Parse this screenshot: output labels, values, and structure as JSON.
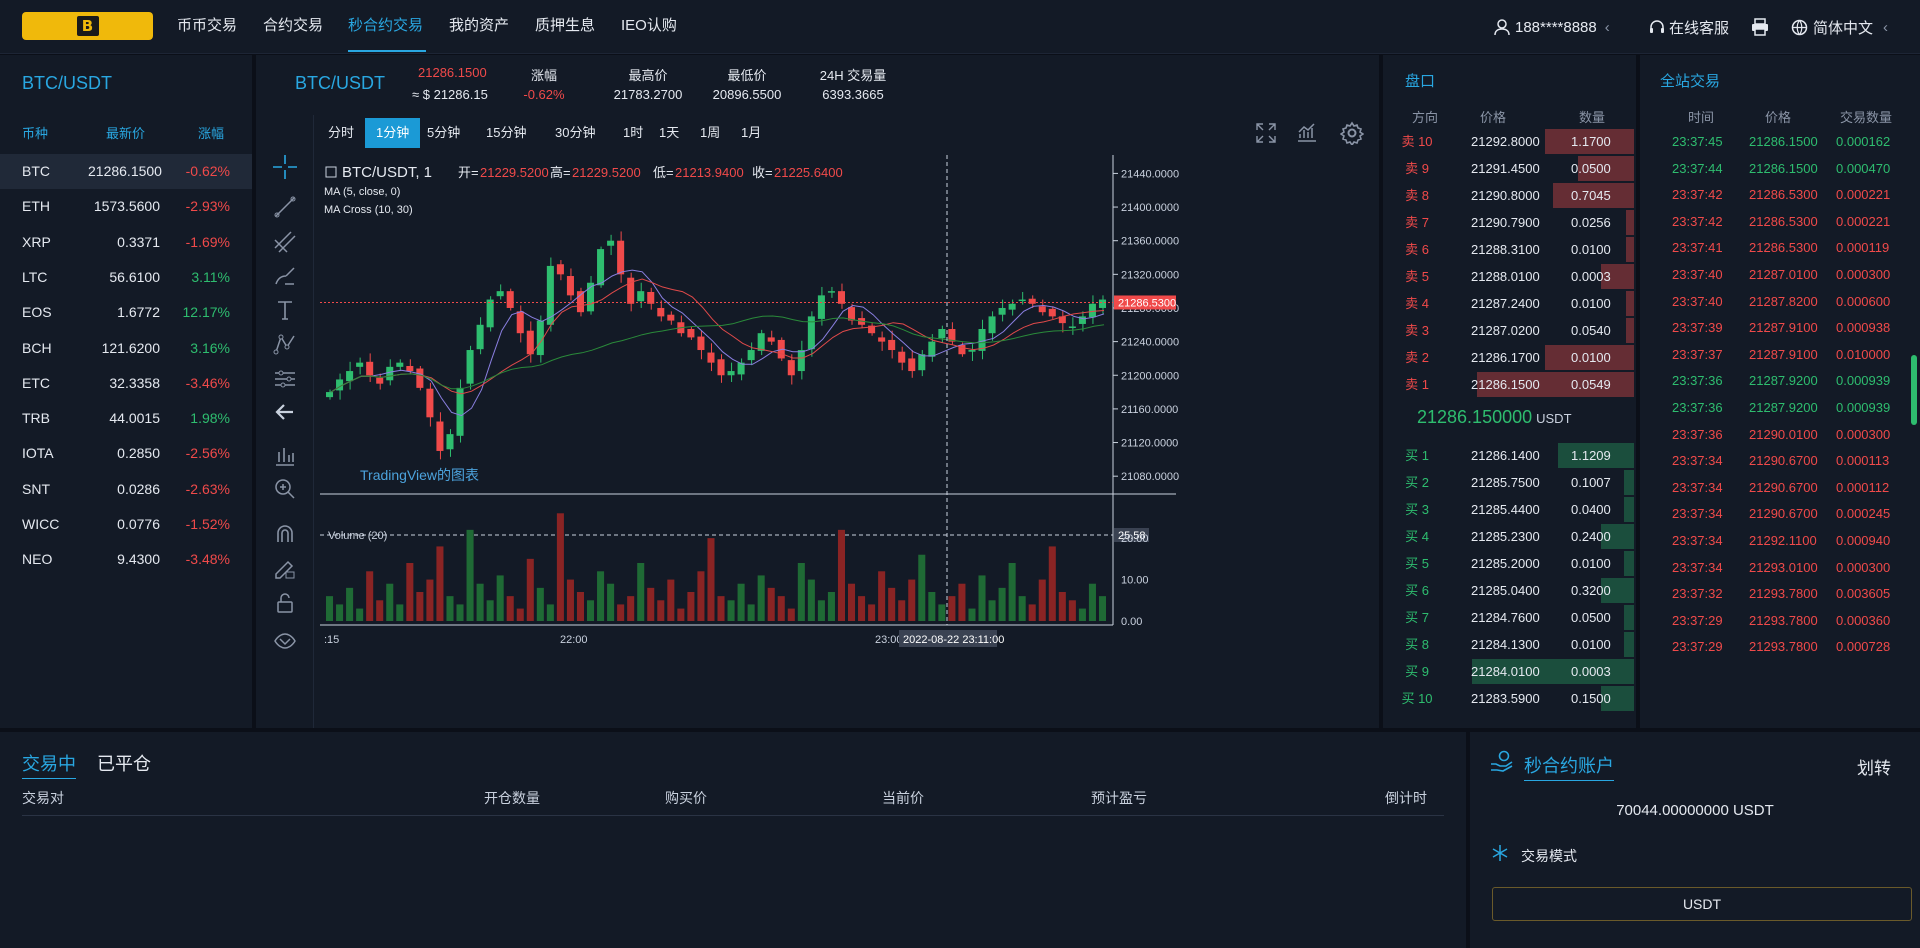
{
  "nav": {
    "logo_letter": "B",
    "items": [
      "币币交易",
      "合约交易",
      "秒合约交易",
      "我的资产",
      "质押生息",
      "IEO认购"
    ],
    "active_index": 2,
    "user": "188****8888",
    "user_chevron": "‹",
    "service": "在线客服",
    "language": "简体中文",
    "lang_chevron": "‹"
  },
  "left": {
    "title": "BTC/USDT",
    "headers": {
      "coin": "币种",
      "price": "最新价",
      "change": "涨幅"
    },
    "rows": [
      {
        "coin": "BTC",
        "price": "21286.1500",
        "change": "-0.62%",
        "dir": "down",
        "selected": true
      },
      {
        "coin": "ETH",
        "price": "1573.5600",
        "change": "-2.93%",
        "dir": "down"
      },
      {
        "coin": "XRP",
        "price": "0.3371",
        "change": "-1.69%",
        "dir": "down"
      },
      {
        "coin": "LTC",
        "price": "56.6100",
        "change": "3.11%",
        "dir": "up"
      },
      {
        "coin": "EOS",
        "price": "1.6772",
        "change": "12.17%",
        "dir": "up"
      },
      {
        "coin": "BCH",
        "price": "121.6200",
        "change": "3.16%",
        "dir": "up"
      },
      {
        "coin": "ETC",
        "price": "32.3358",
        "change": "-3.46%",
        "dir": "down"
      },
      {
        "coin": "TRB",
        "price": "44.0015",
        "change": "1.98%",
        "dir": "up"
      },
      {
        "coin": "IOTA",
        "price": "0.2850",
        "change": "-2.56%",
        "dir": "down"
      },
      {
        "coin": "SNT",
        "price": "0.0286",
        "change": "-2.63%",
        "dir": "down"
      },
      {
        "coin": "WICC",
        "price": "0.0776",
        "change": "-1.52%",
        "dir": "down"
      },
      {
        "coin": "NEO",
        "price": "9.4300",
        "change": "-3.48%",
        "dir": "down"
      }
    ]
  },
  "ticker": {
    "pair": "BTC/USDT",
    "price": "21286.1500",
    "price_usd": "≈ $ 21286.15",
    "stats": [
      {
        "label": "涨幅",
        "value": "-0.62%",
        "color": "#f04a4a"
      },
      {
        "label": "最高价",
        "value": "21783.2700",
        "color": "#e5e9f0"
      },
      {
        "label": "最低价",
        "value": "20896.5500",
        "color": "#e5e9f0"
      },
      {
        "label": "24H 交易量",
        "value": "6393.3665",
        "color": "#e5e9f0"
      }
    ],
    "timeframes": [
      "分时",
      "1分钟",
      "5分钟",
      "15分钟",
      "30分钟",
      "1时",
      "1天",
      "1周",
      "1月"
    ],
    "active_tf": 1
  },
  "chart_data": {
    "type": "candlestick",
    "symbol": "BTC/USDT, 1",
    "ohlc_labels": {
      "open": "开=",
      "high": "高=",
      "low": "低=",
      "close": "收="
    },
    "ohlc": {
      "open": "21229.5200",
      "high": "21229.5200",
      "low": "21213.9400",
      "close": "21225.6400"
    },
    "indicators": [
      "MA (5, close, 0)",
      "MA Cross (10, 30)"
    ],
    "watermark": "TradingView的图表",
    "y_ticks": [
      "21440.0000",
      "21400.0000",
      "21360.0000",
      "21320.0000",
      "21280.0000",
      "21240.0000",
      "21200.0000",
      "21160.0000",
      "21120.0000",
      "21080.0000"
    ],
    "y_range": [
      21060,
      21450
    ],
    "last_price_label": "21286.5300",
    "last_price": 21286.53,
    "volume_label": "Volume (20)",
    "volume_ticks": [
      "20.00",
      "10.00",
      "0.00"
    ],
    "volume_range": [
      0,
      28
    ],
    "volume_cursor_label": "25.58",
    "x_ticks": [
      ":15",
      "22:00",
      "23:00"
    ],
    "crosshair_time": "2022-08-22 23:11:00",
    "close_path": [
      21180,
      21195,
      21205,
      21215,
      21200,
      21190,
      21210,
      21215,
      21205,
      21185,
      21150,
      21110,
      21130,
      21185,
      21230,
      21260,
      21290,
      21300,
      21280,
      21250,
      21225,
      21265,
      21330,
      21320,
      21295,
      21275,
      21310,
      21350,
      21360,
      21320,
      21285,
      21300,
      21285,
      21270,
      21265,
      21250,
      21245,
      21230,
      21215,
      21200,
      21205,
      21215,
      21230,
      21250,
      21240,
      21220,
      21200,
      21230,
      21270,
      21295,
      21300,
      21285,
      21265,
      21260,
      21250,
      21240,
      21230,
      21215,
      21205,
      21225,
      21240,
      21255,
      21240,
      21225,
      21230,
      21255,
      21270,
      21280,
      21285,
      21290,
      21285,
      21275,
      21270,
      21262,
      21258,
      21270,
      21285,
      21290
    ],
    "volume_values": [
      6,
      4,
      8,
      3,
      12,
      5,
      9,
      4,
      14,
      7,
      10,
      18,
      6,
      4,
      22,
      9,
      5,
      11,
      6,
      3,
      15,
      8,
      4,
      26,
      10,
      7,
      5,
      12,
      9,
      4,
      6,
      14,
      8,
      5,
      10,
      3,
      7,
      12,
      20,
      6,
      5,
      9,
      4,
      11,
      8,
      6,
      3,
      14,
      10,
      5,
      7,
      22,
      9,
      6,
      4,
      12,
      8,
      5,
      10,
      16,
      7,
      4,
      6,
      9,
      3,
      11,
      5,
      8,
      14,
      6,
      4,
      10,
      18,
      7,
      5,
      3,
      9,
      6
    ]
  },
  "orderbook": {
    "title": "盘口",
    "headers": {
      "dir": "方向",
      "price": "价格",
      "qty": "数量"
    },
    "asks": [
      {
        "side": "卖 10",
        "price": "21292.8000",
        "qty": "1.1700",
        "depth": 0.35
      },
      {
        "side": "卖 9",
        "price": "21291.4500",
        "qty": "0.0500",
        "depth": 0.22
      },
      {
        "side": "卖 8",
        "price": "21290.8000",
        "qty": "0.7045",
        "depth": 0.32
      },
      {
        "side": "卖 7",
        "price": "21290.7900",
        "qty": "0.0256",
        "depth": 0.03
      },
      {
        "side": "卖 6",
        "price": "21288.3100",
        "qty": "0.0100",
        "depth": 0.03
      },
      {
        "side": "卖 5",
        "price": "21288.0100",
        "qty": "0.0003",
        "depth": 0.13
      },
      {
        "side": "卖 4",
        "price": "21287.2400",
        "qty": "0.0100",
        "depth": 0.03
      },
      {
        "side": "卖 3",
        "price": "21287.0200",
        "qty": "0.0540",
        "depth": 0.03
      },
      {
        "side": "卖 2",
        "price": "21286.1700",
        "qty": "0.0100",
        "depth": 0.35
      },
      {
        "side": "卖 1",
        "price": "21286.1500",
        "qty": "0.0549",
        "depth": 0.62
      }
    ],
    "mid_price": "21286.150000",
    "mid_unit": "USDT",
    "bids": [
      {
        "side": "买 1",
        "price": "21286.1400",
        "qty": "1.1209",
        "depth": 0.3
      },
      {
        "side": "买 2",
        "price": "21285.7500",
        "qty": "0.1007",
        "depth": 0.04
      },
      {
        "side": "买 3",
        "price": "21285.4400",
        "qty": "0.0400",
        "depth": 0.04
      },
      {
        "side": "买 4",
        "price": "21285.2300",
        "qty": "0.2400",
        "depth": 0.13
      },
      {
        "side": "买 5",
        "price": "21285.2000",
        "qty": "0.0100",
        "depth": 0.04
      },
      {
        "side": "买 6",
        "price": "21285.0400",
        "qty": "0.3200",
        "depth": 0.13
      },
      {
        "side": "买 7",
        "price": "21284.7600",
        "qty": "0.0500",
        "depth": 0.04
      },
      {
        "side": "买 8",
        "price": "21284.1300",
        "qty": "0.0100",
        "depth": 0.04
      },
      {
        "side": "买 9",
        "price": "21284.0100",
        "qty": "0.0003",
        "depth": 0.64
      },
      {
        "side": "买 10",
        "price": "21283.5900",
        "qty": "0.1500",
        "depth": 0.13
      }
    ]
  },
  "trades": {
    "title": "全站交易",
    "headers": {
      "time": "时间",
      "price": "价格",
      "qty": "交易数量"
    },
    "rows": [
      {
        "time": "23:37:45",
        "price": "21286.1500",
        "qty": "0.000162",
        "dir": "up"
      },
      {
        "time": "23:37:44",
        "price": "21286.1500",
        "qty": "0.000470",
        "dir": "up"
      },
      {
        "time": "23:37:42",
        "price": "21286.5300",
        "qty": "0.000221",
        "dir": "down"
      },
      {
        "time": "23:37:42",
        "price": "21286.5300",
        "qty": "0.000221",
        "dir": "down"
      },
      {
        "time": "23:37:41",
        "price": "21286.5300",
        "qty": "0.000119",
        "dir": "down"
      },
      {
        "time": "23:37:40",
        "price": "21287.0100",
        "qty": "0.000300",
        "dir": "down"
      },
      {
        "time": "23:37:40",
        "price": "21287.8200",
        "qty": "0.000600",
        "dir": "down"
      },
      {
        "time": "23:37:39",
        "price": "21287.9100",
        "qty": "0.000938",
        "dir": "down"
      },
      {
        "time": "23:37:37",
        "price": "21287.9100",
        "qty": "0.010000",
        "dir": "down"
      },
      {
        "time": "23:37:36",
        "price": "21287.9200",
        "qty": "0.000939",
        "dir": "up"
      },
      {
        "time": "23:37:36",
        "price": "21287.9200",
        "qty": "0.000939",
        "dir": "up"
      },
      {
        "time": "23:37:36",
        "price": "21290.0100",
        "qty": "0.000300",
        "dir": "down"
      },
      {
        "time": "23:37:34",
        "price": "21290.6700",
        "qty": "0.000113",
        "dir": "down"
      },
      {
        "time": "23:37:34",
        "price": "21290.6700",
        "qty": "0.000112",
        "dir": "down"
      },
      {
        "time": "23:37:34",
        "price": "21290.6700",
        "qty": "0.000245",
        "dir": "down"
      },
      {
        "time": "23:37:34",
        "price": "21292.1100",
        "qty": "0.000940",
        "dir": "down"
      },
      {
        "time": "23:37:34",
        "price": "21293.0100",
        "qty": "0.000300",
        "dir": "down"
      },
      {
        "time": "23:37:32",
        "price": "21293.7800",
        "qty": "0.003605",
        "dir": "down"
      },
      {
        "time": "23:37:29",
        "price": "21293.7800",
        "qty": "0.000360",
        "dir": "down"
      },
      {
        "time": "23:37:29",
        "price": "21293.7800",
        "qty": "0.000728",
        "dir": "down"
      }
    ]
  },
  "positions": {
    "tabs": [
      "交易中",
      "已平仓"
    ],
    "columns": [
      "交易对",
      "开仓数量",
      "购买价",
      "当前价",
      "预计盈亏",
      "倒计时"
    ]
  },
  "account": {
    "title": "秒合约账户",
    "transfer": "划转",
    "balance": "70044.00000000 USDT",
    "mode_label": "交易模式",
    "currency_button": "USDT"
  },
  "colors": {
    "accent": "#29a7e1",
    "up": "#2ebd6f",
    "down": "#f04a4a",
    "panel": "#131a26",
    "logo": "#f0b90b"
  }
}
